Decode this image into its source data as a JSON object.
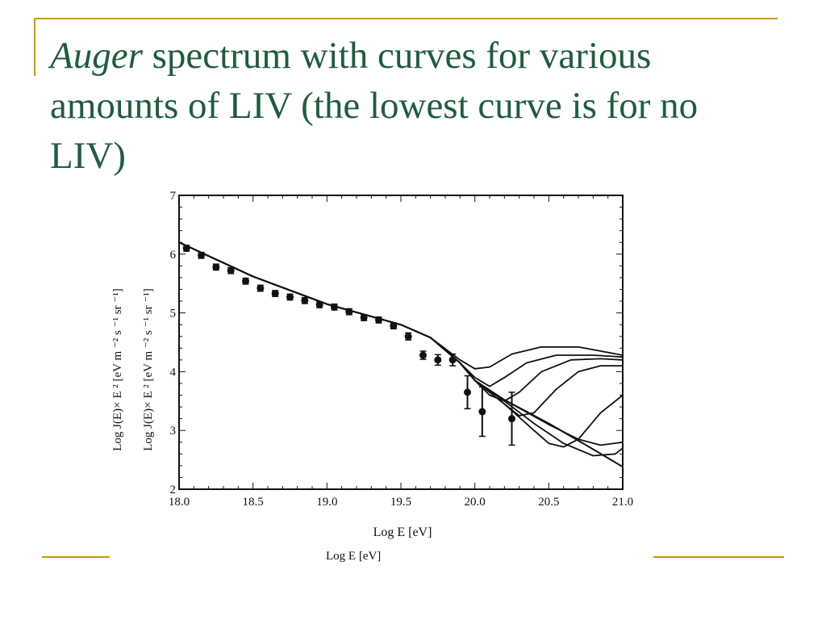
{
  "slide": {
    "title_italic": "Auger",
    "title_rest": " spectrum with curves for various amounts of LIV (the lowest curve is for no LIV)",
    "caption": "Log E [eV]",
    "accent_color": "#cc9900",
    "title_color": "#1f5c3f"
  },
  "chart_data": {
    "type": "line",
    "xlabel": "Log E [eV]",
    "ylabel_outer": "Log J(E)× E ² [eV m ⁻² s ⁻¹ sr ⁻¹]",
    "ylabel_inner": "Log J(E)× E ² [eV m ⁻² s ⁻¹ sr ⁻¹]",
    "xlim": [
      18.0,
      21.0
    ],
    "ylim": [
      2,
      7
    ],
    "x_ticks": [
      "18.0",
      "18.5",
      "19.0",
      "19.5",
      "20.0",
      "20.5",
      "21.0"
    ],
    "y_ticks": [
      "2",
      "3",
      "4",
      "5",
      "6",
      "7"
    ],
    "grid": false,
    "points": [
      {
        "x": 18.05,
        "y": 6.1,
        "err": 0.05
      },
      {
        "x": 18.15,
        "y": 5.98,
        "err": 0.05
      },
      {
        "x": 18.25,
        "y": 5.78,
        "err": 0.05
      },
      {
        "x": 18.35,
        "y": 5.72,
        "err": 0.05
      },
      {
        "x": 18.45,
        "y": 5.54,
        "err": 0.05
      },
      {
        "x": 18.55,
        "y": 5.42,
        "err": 0.05
      },
      {
        "x": 18.65,
        "y": 5.33,
        "err": 0.05
      },
      {
        "x": 18.75,
        "y": 5.27,
        "err": 0.05
      },
      {
        "x": 18.85,
        "y": 5.21,
        "err": 0.05
      },
      {
        "x": 18.95,
        "y": 5.14,
        "err": 0.05
      },
      {
        "x": 19.05,
        "y": 5.1,
        "err": 0.05
      },
      {
        "x": 19.15,
        "y": 5.02,
        "err": 0.05
      },
      {
        "x": 19.25,
        "y": 4.92,
        "err": 0.05
      },
      {
        "x": 19.35,
        "y": 4.88,
        "err": 0.05
      },
      {
        "x": 19.45,
        "y": 4.78,
        "err": 0.05
      },
      {
        "x": 19.55,
        "y": 4.6,
        "err": 0.06
      },
      {
        "x": 19.65,
        "y": 4.28,
        "err": 0.07
      },
      {
        "x": 19.75,
        "y": 4.2,
        "err": 0.09
      },
      {
        "x": 19.85,
        "y": 4.2,
        "err": 0.1
      },
      {
        "x": 19.95,
        "y": 3.65,
        "err": 0.28
      },
      {
        "x": 20.05,
        "y": 3.32,
        "err": 0.42
      },
      {
        "x": 20.25,
        "y": 3.2,
        "err": 0.45
      }
    ],
    "curves": [
      {
        "points": [
          [
            18.0,
            6.2
          ],
          [
            18.5,
            5.62
          ],
          [
            19.0,
            5.15
          ],
          [
            19.5,
            4.8
          ],
          [
            19.7,
            4.58
          ],
          [
            19.9,
            4.15
          ],
          [
            20.0,
            3.85
          ],
          [
            20.2,
            3.52
          ],
          [
            20.5,
            3.12
          ],
          [
            20.8,
            2.68
          ],
          [
            21.0,
            2.38
          ]
        ]
      },
      {
        "points": [
          [
            18.0,
            6.2
          ],
          [
            18.5,
            5.62
          ],
          [
            19.0,
            5.15
          ],
          [
            19.5,
            4.8
          ],
          [
            19.7,
            4.58
          ],
          [
            19.9,
            4.15
          ],
          [
            20.0,
            3.85
          ],
          [
            20.2,
            3.52
          ],
          [
            20.5,
            3.1
          ],
          [
            20.7,
            2.85
          ],
          [
            20.85,
            2.75
          ],
          [
            21.0,
            2.8
          ]
        ]
      },
      {
        "points": [
          [
            18.0,
            6.2
          ],
          [
            18.5,
            5.62
          ],
          [
            19.0,
            5.15
          ],
          [
            19.5,
            4.8
          ],
          [
            19.7,
            4.58
          ],
          [
            19.9,
            4.15
          ],
          [
            20.0,
            3.85
          ],
          [
            20.2,
            3.5
          ],
          [
            20.4,
            3.12
          ],
          [
            20.6,
            2.78
          ],
          [
            20.8,
            2.57
          ],
          [
            20.95,
            2.6
          ],
          [
            21.0,
            2.7
          ]
        ]
      },
      {
        "points": [
          [
            18.0,
            6.2
          ],
          [
            18.5,
            5.62
          ],
          [
            19.0,
            5.15
          ],
          [
            19.5,
            4.8
          ],
          [
            19.7,
            4.58
          ],
          [
            19.9,
            4.15
          ],
          [
            20.0,
            3.85
          ],
          [
            20.2,
            3.45
          ],
          [
            20.4,
            3.0
          ],
          [
            20.5,
            2.78
          ],
          [
            20.6,
            2.72
          ],
          [
            20.7,
            2.85
          ],
          [
            20.85,
            3.3
          ],
          [
            21.0,
            3.6
          ]
        ]
      },
      {
        "points": [
          [
            18.0,
            6.2
          ],
          [
            18.5,
            5.62
          ],
          [
            19.0,
            5.15
          ],
          [
            19.5,
            4.8
          ],
          [
            19.7,
            4.58
          ],
          [
            19.9,
            4.15
          ],
          [
            20.0,
            3.85
          ],
          [
            20.15,
            3.55
          ],
          [
            20.3,
            3.25
          ],
          [
            20.4,
            3.3
          ],
          [
            20.55,
            3.7
          ],
          [
            20.7,
            4.0
          ],
          [
            20.85,
            4.1
          ],
          [
            21.0,
            4.1
          ]
        ]
      },
      {
        "points": [
          [
            18.0,
            6.2
          ],
          [
            18.5,
            5.62
          ],
          [
            19.0,
            5.15
          ],
          [
            19.5,
            4.8
          ],
          [
            19.7,
            4.58
          ],
          [
            19.9,
            4.15
          ],
          [
            20.0,
            3.85
          ],
          [
            20.1,
            3.6
          ],
          [
            20.2,
            3.5
          ],
          [
            20.3,
            3.65
          ],
          [
            20.45,
            4.0
          ],
          [
            20.65,
            4.2
          ],
          [
            20.85,
            4.22
          ],
          [
            21.0,
            4.2
          ]
        ]
      },
      {
        "points": [
          [
            18.0,
            6.2
          ],
          [
            18.5,
            5.62
          ],
          [
            19.0,
            5.15
          ],
          [
            19.5,
            4.8
          ],
          [
            19.7,
            4.58
          ],
          [
            19.9,
            4.15
          ],
          [
            20.0,
            3.9
          ],
          [
            20.1,
            3.75
          ],
          [
            20.2,
            3.9
          ],
          [
            20.35,
            4.15
          ],
          [
            20.55,
            4.28
          ],
          [
            20.8,
            4.28
          ],
          [
            21.0,
            4.25
          ]
        ]
      },
      {
        "points": [
          [
            18.0,
            6.2
          ],
          [
            18.5,
            5.62
          ],
          [
            19.0,
            5.15
          ],
          [
            19.5,
            4.8
          ],
          [
            19.7,
            4.58
          ],
          [
            19.9,
            4.2
          ],
          [
            20.0,
            4.05
          ],
          [
            20.1,
            4.08
          ],
          [
            20.25,
            4.3
          ],
          [
            20.45,
            4.42
          ],
          [
            20.7,
            4.42
          ],
          [
            21.0,
            4.28
          ]
        ]
      }
    ]
  }
}
